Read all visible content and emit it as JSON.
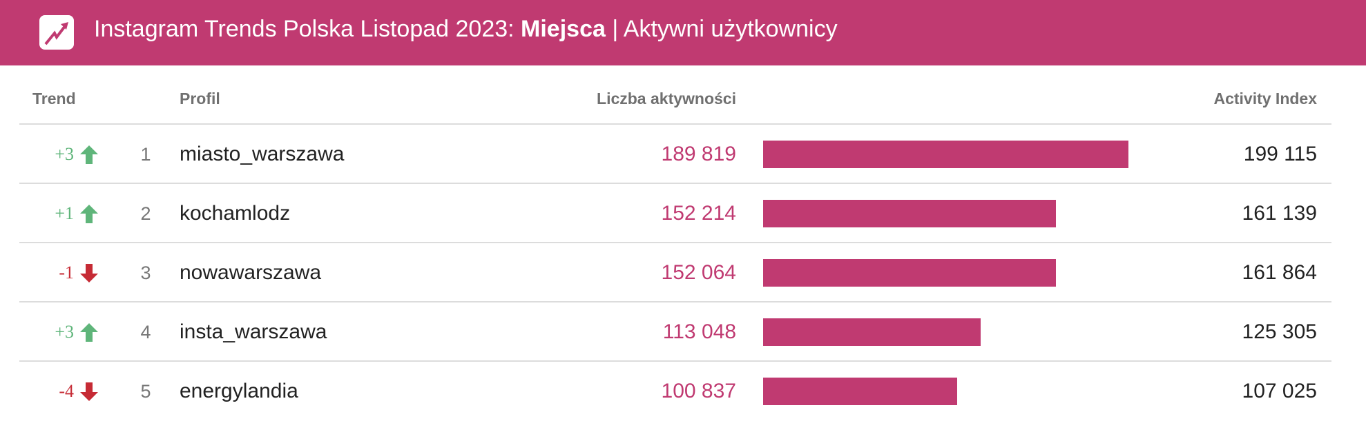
{
  "header": {
    "title_prefix": "Instagram Trends Polska Listopad 2023: ",
    "title_bold": "Miejsca",
    "title_suffix": " | Aktywni użytkownicy",
    "icon": "trending-up-icon"
  },
  "colors": {
    "brand": "#c03a71",
    "up": "#5fb57a",
    "down": "#c62b35"
  },
  "columns": {
    "trend": "Trend",
    "profile": "Profil",
    "count": "Liczba aktywności",
    "index": "Activity Index"
  },
  "chart_data": {
    "type": "table",
    "rows": [
      {
        "trend": "+3",
        "direction": "up",
        "rank": "1",
        "profile": "miasto_warszawa",
        "count_label": "189 819",
        "count": 189819,
        "index": "199 115"
      },
      {
        "trend": "+1",
        "direction": "up",
        "rank": "2",
        "profile": "kochamlodz",
        "count_label": "152 214",
        "count": 152214,
        "index": "161 139"
      },
      {
        "trend": "-1",
        "direction": "down",
        "rank": "3",
        "profile": "nowawarszawa",
        "count_label": "152 064",
        "count": 152064,
        "index": "161 864"
      },
      {
        "trend": "+3",
        "direction": "up",
        "rank": "4",
        "profile": "insta_warszawa",
        "count_label": "113 048",
        "count": 113048,
        "index": "125 305"
      },
      {
        "trend": "-4",
        "direction": "down",
        "rank": "5",
        "profile": "energylandia",
        "count_label": "100 837",
        "count": 100837,
        "index": "107 025"
      }
    ]
  }
}
